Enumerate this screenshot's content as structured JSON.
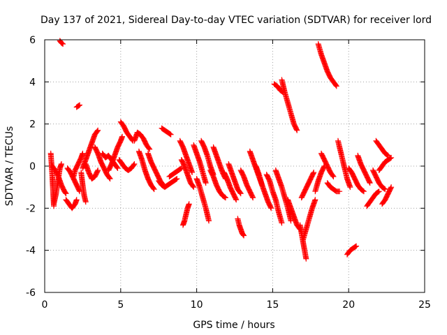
{
  "chart_data": {
    "type": "scatter",
    "title": "Day 137 of 2021, Sidereal Day-to-day VTEC variation (SDTVAR) for receiver lord",
    "xlabel": "GPS time / hours",
    "ylabel": "SDTVAR / TECUs",
    "xlim": [
      0,
      25
    ],
    "ylim": [
      -6,
      6
    ],
    "xticks": [
      0,
      5,
      10,
      15,
      20,
      25
    ],
    "yticks": [
      -6,
      -4,
      -2,
      0,
      2,
      4,
      6
    ],
    "xtick_labels": [
      "0",
      "5",
      "10",
      "15",
      "20",
      "25"
    ],
    "ytick_labels": [
      "-6",
      "-4",
      "-2",
      "0",
      "2",
      "4",
      "6"
    ],
    "grid": true,
    "marker": "+",
    "series_color": "#ff0000",
    "segments": [
      {
        "name": "s1",
        "x": [
          0.4,
          0.45,
          0.5,
          0.55,
          0.6
        ],
        "y": [
          0.6,
          0.1,
          -0.5,
          -1.2,
          -1.9
        ]
      },
      {
        "name": "s2",
        "x": [
          0.6,
          0.75,
          0.9,
          1.0,
          1.1
        ],
        "y": [
          -1.8,
          -1.3,
          -0.6,
          -0.1,
          0.1
        ]
      },
      {
        "name": "s3",
        "x": [
          0.5,
          0.7,
          0.9,
          1.1,
          1.3,
          1.4
        ],
        "y": [
          0.0,
          -0.2,
          -0.5,
          -0.9,
          -1.2,
          -1.3
        ]
      },
      {
        "name": "s4",
        "x": [
          1.0,
          1.1,
          1.2
        ],
        "y": [
          5.95,
          5.85,
          5.8
        ]
      },
      {
        "name": "s5",
        "x": [
          1.4,
          1.6,
          1.8,
          2.0,
          2.1
        ],
        "y": [
          -1.6,
          -1.8,
          -2.0,
          -1.8,
          -1.6
        ]
      },
      {
        "name": "s6",
        "x": [
          1.5,
          1.7,
          1.9,
          2.1,
          2.3
        ],
        "y": [
          -0.1,
          -0.3,
          -0.6,
          -0.9,
          -1.2
        ]
      },
      {
        "name": "s7",
        "x": [
          2.1,
          2.2,
          2.3
        ],
        "y": [
          2.8,
          2.85,
          2.9
        ]
      },
      {
        "name": "s8",
        "x": [
          1.9,
          2.0,
          2.2,
          2.4,
          2.5
        ],
        "y": [
          -0.5,
          -0.2,
          0.1,
          0.4,
          0.6
        ]
      },
      {
        "name": "s9",
        "x": [
          2.4,
          2.5,
          2.6,
          2.7
        ],
        "y": [
          -0.3,
          -0.9,
          -1.4,
          -1.7
        ]
      },
      {
        "name": "s10",
        "x": [
          2.5,
          2.7,
          2.9,
          3.1,
          3.3,
          3.5
        ],
        "y": [
          -0.1,
          0.3,
          0.7,
          1.1,
          1.5,
          1.7
        ]
      },
      {
        "name": "s11",
        "x": [
          2.7,
          2.9,
          3.1,
          3.3,
          3.5
        ],
        "y": [
          0.1,
          -0.3,
          -0.6,
          -0.5,
          -0.2
        ]
      },
      {
        "name": "s12",
        "x": [
          3.3,
          3.5,
          3.7,
          3.9,
          4.1,
          4.3
        ],
        "y": [
          0.9,
          0.6,
          0.2,
          -0.1,
          -0.4,
          -0.6
        ]
      },
      {
        "name": "s13",
        "x": [
          3.8,
          4.0,
          4.2,
          4.4,
          4.6,
          4.8
        ],
        "y": [
          0.6,
          0.4,
          0.5,
          0.3,
          0.1,
          -0.1
        ]
      },
      {
        "name": "s14",
        "x": [
          4.2,
          4.4,
          4.6,
          4.8,
          5.0,
          5.1
        ],
        "y": [
          -0.2,
          0.1,
          0.5,
          0.9,
          1.2,
          1.4
        ]
      },
      {
        "name": "s15",
        "x": [
          5.0,
          5.2,
          5.4,
          5.6,
          5.8
        ],
        "y": [
          2.1,
          1.9,
          1.6,
          1.4,
          1.2
        ]
      },
      {
        "name": "s16",
        "x": [
          4.9,
          5.1,
          5.3,
          5.5,
          5.7,
          5.9
        ],
        "y": [
          0.3,
          0.1,
          -0.1,
          -0.2,
          -0.1,
          0.1
        ]
      },
      {
        "name": "s17",
        "x": [
          5.9,
          6.1,
          6.3,
          6.5,
          6.7,
          6.9
        ],
        "y": [
          1.2,
          1.6,
          1.5,
          1.3,
          1.0,
          0.8
        ]
      },
      {
        "name": "s18",
        "x": [
          6.2,
          6.4,
          6.6,
          6.8,
          7.0,
          7.2
        ],
        "y": [
          0.7,
          0.3,
          -0.2,
          -0.6,
          -0.9,
          -1.1
        ]
      },
      {
        "name": "s19",
        "x": [
          6.8,
          7.0,
          7.2,
          7.4,
          7.6,
          7.8
        ],
        "y": [
          0.6,
          0.2,
          -0.1,
          -0.4,
          -0.7,
          -0.9
        ]
      },
      {
        "name": "s20",
        "x": [
          7.7,
          7.9,
          8.1,
          8.3
        ],
        "y": [
          1.8,
          1.7,
          1.6,
          1.5
        ]
      },
      {
        "name": "s21",
        "x": [
          7.5,
          7.7,
          7.9,
          8.1,
          8.3,
          8.5,
          8.7
        ],
        "y": [
          -0.7,
          -0.9,
          -1.0,
          -0.9,
          -0.8,
          -0.7,
          -0.6
        ]
      },
      {
        "name": "s22",
        "x": [
          8.2,
          8.4,
          8.6,
          8.8,
          9.0
        ],
        "y": [
          -0.5,
          -0.4,
          -0.3,
          -0.2,
          -0.1
        ]
      },
      {
        "name": "s23",
        "x": [
          8.9,
          9.1,
          9.3,
          9.5,
          9.7
        ],
        "y": [
          1.2,
          0.9,
          0.5,
          0.1,
          -0.3
        ]
      },
      {
        "name": "s24",
        "x": [
          9.0,
          9.2,
          9.4,
          9.6,
          9.8
        ],
        "y": [
          0.3,
          0.0,
          -0.4,
          -0.8,
          -1.0
        ]
      },
      {
        "name": "s25",
        "x": [
          9.1,
          9.2,
          9.3,
          9.4,
          9.5
        ],
        "y": [
          -2.8,
          -2.6,
          -2.3,
          -2.0,
          -1.8
        ]
      },
      {
        "name": "s26",
        "x": [
          9.8,
          10.0,
          10.2,
          10.4,
          10.6
        ],
        "y": [
          1.0,
          0.6,
          0.2,
          -0.3,
          -0.8
        ]
      },
      {
        "name": "s27",
        "x": [
          10.0,
          10.2,
          10.4,
          10.6,
          10.8
        ],
        "y": [
          -0.6,
          -1.0,
          -1.5,
          -2.0,
          -2.6
        ]
      },
      {
        "name": "s28",
        "x": [
          10.3,
          10.5,
          10.7,
          10.9,
          11.1
        ],
        "y": [
          1.2,
          0.9,
          0.5,
          0.0,
          -0.4
        ]
      },
      {
        "name": "s29",
        "x": [
          10.9,
          11.1,
          11.3,
          11.5,
          11.7,
          11.9
        ],
        "y": [
          -0.2,
          -0.5,
          -0.9,
          -1.2,
          -1.4,
          -1.5
        ]
      },
      {
        "name": "s30",
        "x": [
          11.1,
          11.3,
          11.5,
          11.7,
          11.9
        ],
        "y": [
          0.9,
          0.5,
          0.1,
          -0.3,
          -0.6
        ]
      },
      {
        "name": "s31",
        "x": [
          11.8,
          12.0,
          12.2,
          12.4,
          12.6
        ],
        "y": [
          -0.3,
          -0.6,
          -1.0,
          -1.3,
          -1.6
        ]
      },
      {
        "name": "s32",
        "x": [
          12.1,
          12.3,
          12.5,
          12.7,
          12.9
        ],
        "y": [
          0.1,
          -0.3,
          -0.7,
          -1.1,
          -1.3
        ]
      },
      {
        "name": "s33",
        "x": [
          12.7,
          12.8,
          12.9,
          13.0,
          13.1
        ],
        "y": [
          -2.5,
          -2.8,
          -3.0,
          -3.2,
          -3.3
        ]
      },
      {
        "name": "s34",
        "x": [
          12.9,
          13.1,
          13.3,
          13.5,
          13.7
        ],
        "y": [
          -0.2,
          -0.5,
          -0.9,
          -1.2,
          -1.5
        ]
      },
      {
        "name": "s35",
        "x": [
          13.5,
          13.7,
          13.9,
          14.1,
          14.3
        ],
        "y": [
          0.7,
          0.3,
          -0.1,
          -0.5,
          -0.9
        ]
      },
      {
        "name": "s36",
        "x": [
          13.9,
          14.1,
          14.3,
          14.5,
          14.7,
          14.9
        ],
        "y": [
          0.0,
          -0.4,
          -0.9,
          -1.3,
          -1.7,
          -2.0
        ]
      },
      {
        "name": "s37",
        "x": [
          14.6,
          14.8,
          15.0,
          15.2,
          15.4,
          15.6
        ],
        "y": [
          -0.4,
          -0.7,
          -1.2,
          -1.6,
          -2.2,
          -2.7
        ]
      },
      {
        "name": "s38",
        "x": [
          15.1,
          15.3,
          15.5,
          15.7
        ],
        "y": [
          3.9,
          3.8,
          3.6,
          3.5
        ]
      },
      {
        "name": "s39",
        "x": [
          15.6,
          15.8,
          16.0,
          16.2,
          16.4,
          16.6
        ],
        "y": [
          4.1,
          3.5,
          3.0,
          2.5,
          2.0,
          1.7
        ]
      },
      {
        "name": "s40",
        "x": [
          15.2,
          15.4,
          15.6,
          15.8,
          16.0,
          16.2
        ],
        "y": [
          -0.2,
          -0.6,
          -1.0,
          -1.5,
          -2.0,
          -2.6
        ]
      },
      {
        "name": "s41",
        "x": [
          16.0,
          16.2,
          16.4,
          16.6,
          16.8
        ],
        "y": [
          -1.6,
          -2.0,
          -2.4,
          -2.8,
          -3.0
        ]
      },
      {
        "name": "s42",
        "x": [
          16.8,
          16.9,
          17.0,
          17.1,
          17.2
        ],
        "y": [
          -2.8,
          -3.2,
          -3.6,
          -4.0,
          -4.4
        ]
      },
      {
        "name": "s43",
        "x": [
          16.9,
          17.1,
          17.3,
          17.5,
          17.7
        ],
        "y": [
          -1.5,
          -1.2,
          -0.9,
          -0.6,
          -0.3
        ]
      },
      {
        "name": "s44",
        "x": [
          17.0,
          17.2,
          17.4,
          17.6,
          17.8
        ],
        "y": [
          -3.5,
          -3.0,
          -2.5,
          -2.0,
          -1.6
        ]
      },
      {
        "name": "s45",
        "x": [
          17.8,
          18.0,
          18.2,
          18.4
        ],
        "y": [
          -1.2,
          -0.7,
          -0.3,
          0.0
        ]
      },
      {
        "name": "s46",
        "x": [
          18.0,
          18.2,
          18.4,
          18.6,
          18.8,
          19.0,
          19.2
        ],
        "y": [
          5.8,
          5.3,
          4.9,
          4.5,
          4.2,
          4.0,
          3.8
        ]
      },
      {
        "name": "s47",
        "x": [
          18.2,
          18.4,
          18.6,
          18.8,
          19.0
        ],
        "y": [
          0.6,
          0.3,
          0.0,
          -0.3,
          -0.5
        ]
      },
      {
        "name": "s48",
        "x": [
          18.6,
          18.8,
          19.0,
          19.2,
          19.4
        ],
        "y": [
          -0.8,
          -1.0,
          -1.1,
          -1.2,
          -1.2
        ]
      },
      {
        "name": "s49",
        "x": [
          19.3,
          19.5,
          19.7,
          19.9,
          20.1
        ],
        "y": [
          1.2,
          0.6,
          0.0,
          -0.6,
          -1.0
        ]
      },
      {
        "name": "s50",
        "x": [
          19.9,
          20.1,
          20.3,
          20.5
        ],
        "y": [
          -4.2,
          -4.0,
          -3.9,
          -3.8
        ]
      },
      {
        "name": "s51",
        "x": [
          20.0,
          20.2,
          20.4,
          20.6,
          20.8,
          21.0
        ],
        "y": [
          -0.1,
          -0.3,
          -0.6,
          -0.9,
          -1.1,
          -1.2
        ]
      },
      {
        "name": "s52",
        "x": [
          20.6,
          20.8,
          21.0,
          21.2,
          21.4
        ],
        "y": [
          0.5,
          0.1,
          -0.2,
          -0.5,
          -0.8
        ]
      },
      {
        "name": "s53",
        "x": [
          21.2,
          21.4,
          21.6,
          21.8,
          22.0
        ],
        "y": [
          -1.9,
          -1.7,
          -1.5,
          -1.3,
          -1.2
        ]
      },
      {
        "name": "s54",
        "x": [
          21.6,
          21.8,
          22.0,
          22.2,
          22.4
        ],
        "y": [
          -0.2,
          -0.5,
          -0.8,
          -1.0,
          -1.1
        ]
      },
      {
        "name": "s55",
        "x": [
          21.8,
          22.0,
          22.2,
          22.4,
          22.6
        ],
        "y": [
          1.2,
          1.0,
          0.8,
          0.6,
          0.5
        ]
      },
      {
        "name": "s56",
        "x": [
          22.0,
          22.2,
          22.4,
          22.6,
          22.8
        ],
        "y": [
          -0.2,
          0.0,
          0.2,
          0.3,
          0.4
        ]
      },
      {
        "name": "s57",
        "x": [
          22.2,
          22.4,
          22.6,
          22.8
        ],
        "y": [
          -1.8,
          -1.6,
          -1.3,
          -1.0
        ]
      }
    ]
  }
}
